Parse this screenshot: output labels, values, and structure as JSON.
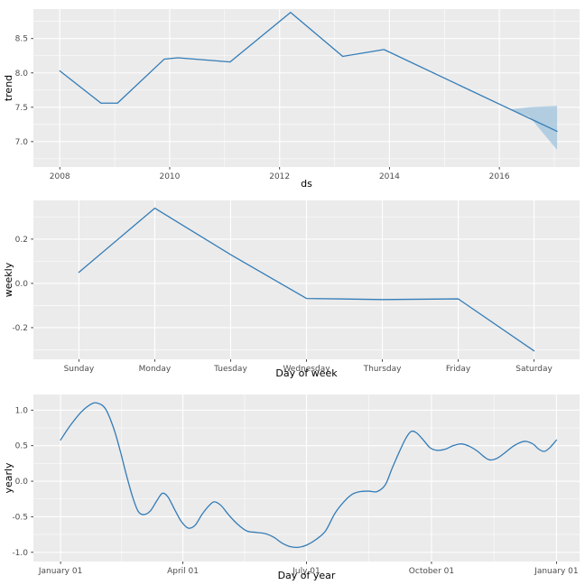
{
  "figure": {
    "description": "Prophet forecast components plot: trend, weekly, yearly"
  },
  "colors": {
    "line": "#337cb7",
    "band": "#9fc3dc",
    "panel_bg": "#ebebeb",
    "grid": "#ffffff",
    "tick_mark": "#333333",
    "tick_label": "#4d4d4d",
    "axis_title": "#000000",
    "background": "#ffffff"
  },
  "chart_data": [
    {
      "type": "line",
      "name": "trend",
      "title": "",
      "xlabel": "ds",
      "ylabel": "trend",
      "smooth": false,
      "x": [
        2008.0,
        2008.75,
        2009.05,
        2009.9,
        2010.15,
        2011.1,
        2012.2,
        2013.15,
        2013.9,
        2016.2,
        2017.05
      ],
      "y": [
        8.03,
        7.56,
        7.56,
        8.2,
        8.22,
        8.16,
        8.88,
        8.24,
        8.34,
        7.47,
        7.15
      ],
      "band": {
        "x": [
          2016.2,
          2016.55,
          2017.05
        ],
        "upper": [
          7.47,
          7.5,
          7.52
        ],
        "lower": [
          7.47,
          7.36,
          6.88
        ]
      },
      "xticks": {
        "values": [
          2008,
          2010,
          2012,
          2014,
          2016
        ],
        "labels": [
          "2008",
          "2010",
          "2012",
          "2014",
          "2016"
        ]
      },
      "yticks": {
        "values": [
          7.0,
          7.5,
          8.0,
          8.5
        ],
        "labels": [
          "7.0",
          "7.5",
          "8.0",
          "8.5"
        ]
      },
      "xlim": [
        2007.52,
        2017.46
      ],
      "ylim": [
        6.63,
        8.93
      ],
      "grid": true,
      "legend": false
    },
    {
      "type": "line",
      "name": "weekly",
      "title": "",
      "xlabel": "Day of week",
      "ylabel": "weekly",
      "smooth": false,
      "categories": [
        "Sunday",
        "Monday",
        "Tuesday",
        "Wednesday",
        "Thursday",
        "Friday",
        "Saturday"
      ],
      "values": [
        0.05,
        0.34,
        0.13,
        -0.068,
        -0.073,
        -0.07,
        -0.305
      ],
      "yticks": {
        "values": [
          -0.2,
          0.0,
          0.2
        ],
        "labels": [
          "-0.2",
          "0.0",
          "0.2"
        ]
      },
      "ylim": [
        -0.343,
        0.375
      ],
      "grid": true,
      "legend": false
    },
    {
      "type": "line",
      "name": "yearly",
      "title": "",
      "xlabel": "Day of year",
      "ylabel": "yearly",
      "smooth": true,
      "x": [
        1,
        8,
        16,
        23,
        28,
        34,
        40,
        45,
        49,
        54,
        58,
        62,
        67,
        72,
        76,
        80,
        85,
        90,
        95,
        100,
        105,
        110,
        114,
        119,
        125,
        131,
        138,
        145,
        152,
        158,
        164,
        170,
        176,
        182,
        189,
        196,
        203,
        210,
        216,
        222,
        228,
        234,
        240,
        245,
        250,
        255,
        259,
        263,
        268,
        273,
        278,
        284,
        290,
        296,
        302,
        308,
        313,
        317,
        322,
        328,
        334,
        340,
        344,
        349,
        353,
        357,
        361,
        366
      ],
      "y": [
        0.58,
        0.78,
        0.97,
        1.08,
        1.1,
        1.02,
        0.75,
        0.42,
        0.12,
        -0.22,
        -0.42,
        -0.47,
        -0.42,
        -0.27,
        -0.17,
        -0.22,
        -0.4,
        -0.57,
        -0.66,
        -0.62,
        -0.47,
        -0.35,
        -0.29,
        -0.34,
        -0.48,
        -0.6,
        -0.7,
        -0.72,
        -0.74,
        -0.79,
        -0.87,
        -0.92,
        -0.93,
        -0.9,
        -0.82,
        -0.7,
        -0.45,
        -0.28,
        -0.18,
        -0.145,
        -0.14,
        -0.145,
        -0.05,
        0.18,
        0.4,
        0.6,
        0.7,
        0.68,
        0.58,
        0.47,
        0.435,
        0.45,
        0.5,
        0.525,
        0.49,
        0.42,
        0.34,
        0.3,
        0.32,
        0.4,
        0.49,
        0.55,
        0.56,
        0.52,
        0.45,
        0.42,
        0.47,
        0.58
      ],
      "xticks": {
        "values": [
          1,
          91,
          182,
          274,
          366
        ],
        "labels": [
          "January 01",
          "April 01",
          "July 01",
          "October 01",
          "January 01"
        ]
      },
      "yticks": {
        "values": [
          -1.0,
          -0.5,
          0.0,
          0.5,
          1.0
        ],
        "labels": [
          "-1.0",
          "-0.5",
          "0.0",
          "0.5",
          "1.0"
        ]
      },
      "xlim": [
        -19,
        383
      ],
      "ylim": [
        -1.13,
        1.22
      ],
      "grid": true,
      "legend": false
    }
  ]
}
